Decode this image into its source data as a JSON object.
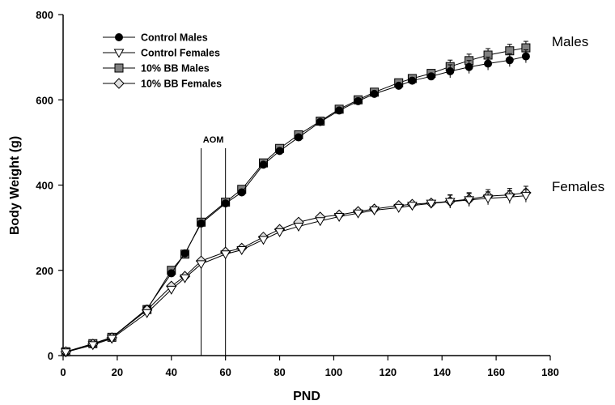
{
  "chart_data": {
    "type": "line",
    "xlabel": "PND",
    "ylabel": "Body Weight (g)",
    "xlim": [
      0,
      180
    ],
    "ylim": [
      0,
      800
    ],
    "x_ticks": [
      0,
      20,
      40,
      60,
      80,
      100,
      120,
      140,
      160,
      180
    ],
    "y_ticks": [
      0,
      200,
      400,
      600,
      800
    ],
    "grid": false,
    "legend_position": "top-left",
    "annotations": {
      "aom_label": "AOM",
      "aom_lines_x": [
        51,
        60
      ],
      "group_labels": [
        {
          "text": "Males",
          "at_x": 171,
          "at_y": 720
        },
        {
          "text": "Females",
          "at_x": 171,
          "at_y": 380
        }
      ]
    },
    "x": [
      1,
      11,
      18,
      31,
      40,
      45,
      51,
      60,
      66,
      74,
      80,
      87,
      95,
      102,
      109,
      115,
      124,
      129,
      136,
      143,
      150,
      157,
      165,
      171
    ],
    "series": [
      {
        "name": "Control Males",
        "marker": "circle",
        "fill": "#000000",
        "values": [
          8,
          27,
          42,
          110,
          193,
          240,
          310,
          357,
          383,
          448,
          480,
          512,
          548,
          575,
          597,
          614,
          633,
          645,
          655,
          667,
          677,
          685,
          693,
          702
        ]
      },
      {
        "name": "Control Females",
        "marker": "triangle-down",
        "fill": "#ffffff",
        "values": [
          8,
          25,
          40,
          100,
          155,
          182,
          215,
          238,
          248,
          272,
          290,
          303,
          316,
          326,
          334,
          341,
          347,
          352,
          357,
          361,
          365,
          369,
          372,
          375
        ]
      },
      {
        "name": "10% BB Males",
        "marker": "square",
        "fill": "#808080",
        "values": [
          9,
          28,
          43,
          108,
          200,
          238,
          313,
          360,
          390,
          452,
          486,
          518,
          550,
          578,
          600,
          618,
          640,
          650,
          662,
          678,
          692,
          705,
          715,
          722
        ]
      },
      {
        "name": "10% BB  Females",
        "marker": "diamond",
        "fill": "#e0e0e0",
        "values": [
          9,
          27,
          42,
          107,
          163,
          186,
          222,
          243,
          252,
          278,
          296,
          313,
          325,
          330,
          338,
          344,
          352,
          355,
          358,
          362,
          367,
          374,
          377,
          382
        ]
      }
    ]
  }
}
